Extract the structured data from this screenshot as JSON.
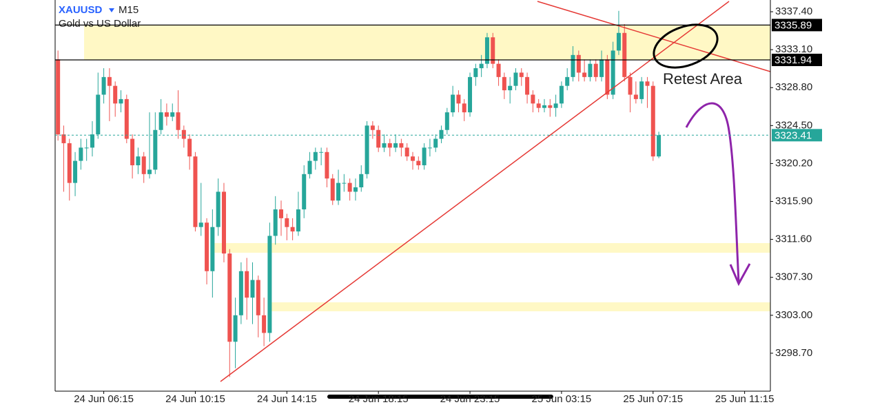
{
  "chart_data": {
    "type": "candlestick",
    "symbol": "XAUUSD",
    "timeframe": "M15",
    "subtitle": "Gold vs US Dollar",
    "annotation": "Retest Area",
    "categories": [
      null,
      null,
      null,
      null,
      null,
      null,
      null,
      null,
      "24 Jun 06:15",
      null,
      null,
      null,
      null,
      null,
      null,
      null,
      null,
      null,
      null,
      null,
      null,
      null,
      null,
      null,
      "24 Jun 10:15",
      null,
      null,
      null,
      null,
      null,
      null,
      null,
      null,
      null,
      null,
      null,
      null,
      null,
      null,
      null,
      "24 Jun 14:15",
      null,
      null,
      null,
      null,
      null,
      null,
      null,
      null,
      null,
      null,
      null,
      null,
      null,
      null,
      null,
      "24 Jun 18:15",
      null,
      null,
      null,
      null,
      null,
      null,
      null,
      null,
      null,
      null,
      null,
      null,
      null,
      null,
      null,
      "24 Jun 23:15",
      null,
      null,
      null,
      null,
      null,
      null,
      null,
      null,
      null,
      null,
      null,
      null,
      null,
      null,
      null,
      "25 Jun 03:15",
      null,
      null,
      null,
      null,
      null,
      null,
      null,
      null,
      null,
      null,
      null,
      null,
      null,
      null,
      null,
      "25 Jun 07:15",
      null,
      null,
      null,
      null,
      null,
      null,
      null,
      null,
      null,
      null,
      null,
      null,
      null,
      null,
      null,
      "25 Jun 11:15",
      null,
      null,
      null,
      null
    ],
    "open": [
      3332,
      3323.5,
      3322.5,
      3318,
      3320.5,
      3322,
      3322,
      3323.5,
      3328,
      3330,
      3329,
      3327,
      3327.5,
      3323,
      3320,
      3321,
      3319,
      3319.5,
      3324,
      3326,
      3325.5,
      3326,
      3324,
      3323,
      3321,
      3313,
      3313.5,
      3308,
      3313,
      3317,
      3310,
      3300,
      3303,
      3308,
      3305,
      3307,
      3303,
      3301,
      3312,
      3315,
      3314,
      3313,
      3312.5,
      3315,
      3319,
      3320.5,
      3321.5,
      3321.5,
      3318.5,
      3316,
      3318,
      3318,
      3317,
      3317.5,
      3319,
      3324.5,
      3324,
      3322,
      3322.5,
      3322,
      3322.5,
      3322,
      3321,
      3320.5,
      3320,
      3322,
      3322,
      3323,
      3324,
      3326,
      3328,
      3327,
      3326,
      3330,
      3331,
      3331.5,
      3334.5,
      3331.5,
      3330,
      3328.5,
      3329,
      3330.5,
      3330,
      3328,
      3327,
      3326.5,
      3326.8,
      3326.5,
      3327,
      3329,
      3330,
      3332.5,
      3330.5,
      3330,
      3331.5,
      3330,
      3332,
      3328,
      3333,
      3335,
      3330,
      3328,
      3327.5,
      3329.5,
      3329,
      3321,
      null,
      null,
      null,
      null,
      null,
      null,
      null,
      null,
      null,
      null,
      null,
      null,
      null,
      null,
      null,
      null,
      null,
      null,
      null
    ],
    "high": [
      3333,
      3324.5,
      3323,
      3321.5,
      3323,
      3323,
      3325,
      3330.5,
      3331,
      3331,
      3329.5,
      3328.5,
      3328,
      3323.5,
      3322,
      3321.5,
      3326,
      3326,
      3327.5,
      3327,
      3327,
      3328.5,
      3324.5,
      3323.5,
      3321.5,
      3318,
      3314,
      3315,
      3318.5,
      3318,
      3310.5,
      3305,
      3309,
      3309.5,
      3309,
      3307.5,
      3305,
      3313.5,
      3316.5,
      3316,
      3314.5,
      3314,
      3317,
      3320,
      3321.5,
      3322,
      3322,
      3322,
      3319,
      3319.5,
      3319,
      3318.5,
      3318.5,
      3320,
      3325,
      3325,
      3324.5,
      3323.5,
      3323,
      3323.5,
      3323,
      3322.5,
      3321.5,
      3321,
      3322.5,
      3323,
      3323.5,
      3324.5,
      3326.5,
      3329,
      3328.5,
      3327.5,
      3330.5,
      3331.5,
      3332.5,
      3335,
      3335,
      3332,
      3330.5,
      3330,
      3331,
      3331,
      3330.5,
      3328.5,
      3327.5,
      3327.5,
      3327.5,
      3328,
      3329.5,
      3331,
      3333.5,
      3333,
      3332,
      3332,
      3332,
      3333,
      3332.5,
      3334,
      3337.5,
      3336,
      3330.5,
      3329.5,
      3330,
      3330,
      3329.5,
      3323.8,
      null,
      null,
      null,
      null,
      null,
      null,
      null,
      null,
      null,
      null,
      null,
      null,
      null,
      null,
      null,
      null,
      null,
      null,
      null
    ],
    "low": [
      3322.8,
      3317,
      3316,
      3316.5,
      3319.5,
      3320.5,
      3321,
      3323,
      3327,
      3325,
      3325.5,
      3326,
      3322.5,
      3318.5,
      3319,
      3318,
      3318.5,
      3319,
      3323.5,
      3324.5,
      3325,
      3323,
      3322,
      3319.5,
      3312.5,
      3312,
      3306.5,
      3305,
      3312,
      3309,
      3296,
      3297,
      3302,
      3302.5,
      3302,
      3300.5,
      3299.5,
      3300,
      3311,
      3312,
      3311.5,
      3311.5,
      3312,
      3314,
      3318.5,
      3319.5,
      3320,
      3317.5,
      3315.5,
      3315.5,
      3317,
      3316,
      3316,
      3317,
      3318.5,
      3323,
      3321.5,
      3321.5,
      3321,
      3321.5,
      3321,
      3320.5,
      3319.5,
      3319.5,
      3319.5,
      3321,
      3321.5,
      3322.5,
      3323.5,
      3325.5,
      3326,
      3325,
      3325.5,
      3329,
      3330,
      3331,
      3331,
      3329,
      3327.5,
      3327,
      3328.5,
      3329,
      3327,
      3326,
      3326,
      3326,
      3325.5,
      3325.5,
      3326.5,
      3328.5,
      3329.5,
      3329.5,
      3329.5,
      3329.5,
      3329.5,
      3329.5,
      3327.5,
      3327.5,
      3332.5,
      3329.5,
      3326,
      3327,
      3327,
      3326.5,
      3320.5,
      3320.8,
      null,
      null,
      null,
      null,
      null,
      null,
      null,
      null,
      null,
      null,
      null,
      null,
      null,
      null,
      null,
      null,
      null,
      null,
      null
    ],
    "close": [
      3323.5,
      3322.5,
      3318,
      3320.5,
      3322,
      3322,
      3323.5,
      3328,
      3330,
      3329,
      3327,
      3327.5,
      3323,
      3320,
      3321,
      3319,
      3319.5,
      3324,
      3326,
      3325.5,
      3326,
      3324,
      3323,
      3321,
      3313,
      3313.5,
      3308,
      3313,
      3317,
      3310,
      3300,
      3303,
      3308,
      3305,
      3307,
      3303,
      3301,
      3312,
      3315,
      3314,
      3313,
      3312.5,
      3315,
      3319,
      3320.5,
      3321.5,
      3321.5,
      3318.5,
      3316,
      3318,
      3318,
      3317,
      3317.5,
      3319,
      3324.5,
      3324,
      3322,
      3322.5,
      3322,
      3322.5,
      3322,
      3321,
      3320.5,
      3320,
      3322,
      3322,
      3323,
      3324,
      3326,
      3328,
      3327,
      3326,
      3330,
      3331,
      3331.5,
      3334.5,
      3331.5,
      3330,
      3328.5,
      3329,
      3330.5,
      3330,
      3328,
      3327,
      3326.5,
      3326.8,
      3326.5,
      3327,
      3329,
      3330,
      3332.5,
      3330.5,
      3330,
      3331.5,
      3330,
      3332,
      3328,
      3333,
      3335,
      3330,
      3328,
      3327.5,
      3329.5,
      3329,
      3321,
      3323.41,
      null,
      null,
      null,
      null,
      null,
      null,
      null,
      null,
      null,
      null,
      null,
      null,
      null,
      null,
      null,
      null,
      null,
      null,
      null
    ],
    "up_color": "#26a69a",
    "down_color": "#ef5350",
    "ylim": [
      3294.4,
      3338.73
    ],
    "yticks": [
      {
        "value": 3298.7,
        "label": "3298.70"
      },
      {
        "value": 3303,
        "label": "3303.00"
      },
      {
        "value": 3307.3,
        "label": "3307.30"
      },
      {
        "value": 3311.6,
        "label": "3311.60"
      },
      {
        "value": 3315.9,
        "label": "3315.90"
      },
      {
        "value": 3320.2,
        "label": "3320.20"
      },
      {
        "value": 3324.5,
        "label": "3324.50"
      },
      {
        "value": 3328.8,
        "label": "3328.80"
      },
      {
        "value": 3333.1,
        "label": "3333.10"
      },
      {
        "value": 3337.4,
        "label": "3337.40"
      }
    ],
    "levels": [
      {
        "value": 3335.89,
        "color": "#000000"
      },
      {
        "value": 3331.94,
        "color": "#000000"
      }
    ],
    "zone_color": "#fff8c5",
    "last_price_color": "#26a69a"
  }
}
